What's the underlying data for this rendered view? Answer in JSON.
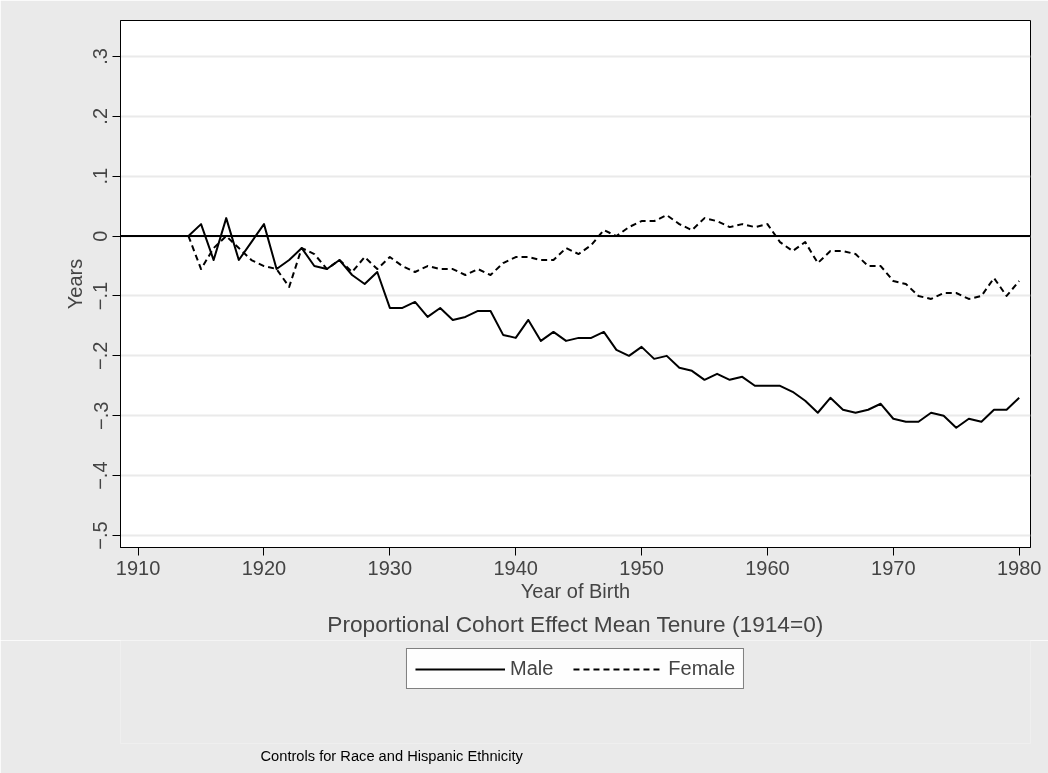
{
  "chart_data": {
    "type": "line",
    "title": "Proportional Cohort Effect Mean Tenure (1914=0)",
    "xlabel": "Year of Birth",
    "ylabel": "Years",
    "x": [
      1914,
      1915,
      1916,
      1917,
      1918,
      1919,
      1920,
      1921,
      1922,
      1923,
      1924,
      1925,
      1926,
      1927,
      1928,
      1929,
      1930,
      1931,
      1932,
      1933,
      1934,
      1935,
      1936,
      1937,
      1938,
      1939,
      1940,
      1941,
      1942,
      1943,
      1944,
      1945,
      1946,
      1947,
      1948,
      1949,
      1950,
      1951,
      1952,
      1953,
      1954,
      1955,
      1956,
      1957,
      1958,
      1959,
      1960,
      1961,
      1962,
      1963,
      1964,
      1965,
      1966,
      1967,
      1968,
      1969,
      1970,
      1971,
      1972,
      1973,
      1974,
      1975,
      1976,
      1977,
      1978,
      1979,
      1980
    ],
    "series": [
      {
        "name": "Male",
        "color": "#000000",
        "line_style": "solid",
        "values": [
          0,
          0.02,
          -0.04,
          0.03,
          -0.04,
          -0.01,
          0.02,
          -0.055,
          -0.04,
          -0.02,
          -0.05,
          -0.055,
          -0.04,
          -0.065,
          -0.08,
          -0.06,
          -0.12,
          -0.12,
          -0.11,
          -0.135,
          -0.12,
          -0.14,
          -0.135,
          -0.125,
          -0.125,
          -0.165,
          -0.17,
          -0.14,
          -0.175,
          -0.16,
          -0.175,
          -0.17,
          -0.17,
          -0.16,
          -0.19,
          -0.2,
          -0.185,
          -0.205,
          -0.2,
          -0.22,
          -0.225,
          -0.24,
          -0.23,
          -0.24,
          -0.235,
          -0.25,
          -0.25,
          -0.25,
          -0.26,
          -0.275,
          -0.295,
          -0.27,
          -0.29,
          -0.295,
          -0.29,
          -0.28,
          -0.305,
          -0.31,
          -0.31,
          -0.295,
          -0.3,
          -0.32,
          -0.305,
          -0.31,
          -0.29,
          -0.29,
          -0.27
        ]
      },
      {
        "name": "Female",
        "color": "#000000",
        "line_style": "dashed",
        "values": [
          0,
          -0.055,
          -0.02,
          0,
          -0.02,
          -0.04,
          -0.05,
          -0.055,
          -0.085,
          -0.02,
          -0.03,
          -0.055,
          -0.04,
          -0.06,
          -0.035,
          -0.055,
          -0.035,
          -0.05,
          -0.06,
          -0.05,
          -0.055,
          -0.055,
          -0.065,
          -0.055,
          -0.065,
          -0.045,
          -0.035,
          -0.035,
          -0.04,
          -0.04,
          -0.02,
          -0.03,
          -0.015,
          0.01,
          0,
          0.015,
          0.025,
          0.025,
          0.035,
          0.02,
          0.01,
          0.03,
          0.025,
          0.015,
          0.02,
          0.015,
          0.02,
          -0.01,
          -0.025,
          -0.01,
          -0.045,
          -0.025,
          -0.025,
          -0.03,
          -0.05,
          -0.05,
          -0.075,
          -0.08,
          -0.1,
          -0.105,
          -0.095,
          -0.095,
          -0.105,
          -0.1,
          -0.07,
          -0.1,
          -0.075
        ]
      }
    ],
    "xlim": [
      1908.6,
      1980.9
    ],
    "ylim": [
      -0.52,
      0.36
    ],
    "xticks": [
      1910,
      1920,
      1930,
      1940,
      1950,
      1960,
      1970,
      1980
    ],
    "yticks": [
      {
        "value": -0.5,
        "label": "−.5"
      },
      {
        "value": -0.4,
        "label": "−.4"
      },
      {
        "value": -0.3,
        "label": "−.3"
      },
      {
        "value": -0.2,
        "label": "−.2"
      },
      {
        "value": -0.1,
        "label": "−.1"
      },
      0,
      {
        "value": 0.1,
        "label": ".1"
      },
      {
        "value": 0.2,
        "label": ".2"
      },
      {
        "value": 0.3,
        "label": ".3"
      }
    ],
    "ref_lines": [
      {
        "axis": "y",
        "value": 0,
        "color": "#000000"
      }
    ],
    "grid": "y",
    "legend": "bottom",
    "annotations": [
      "Controls for Race and Hispanic Ethnicity"
    ]
  }
}
